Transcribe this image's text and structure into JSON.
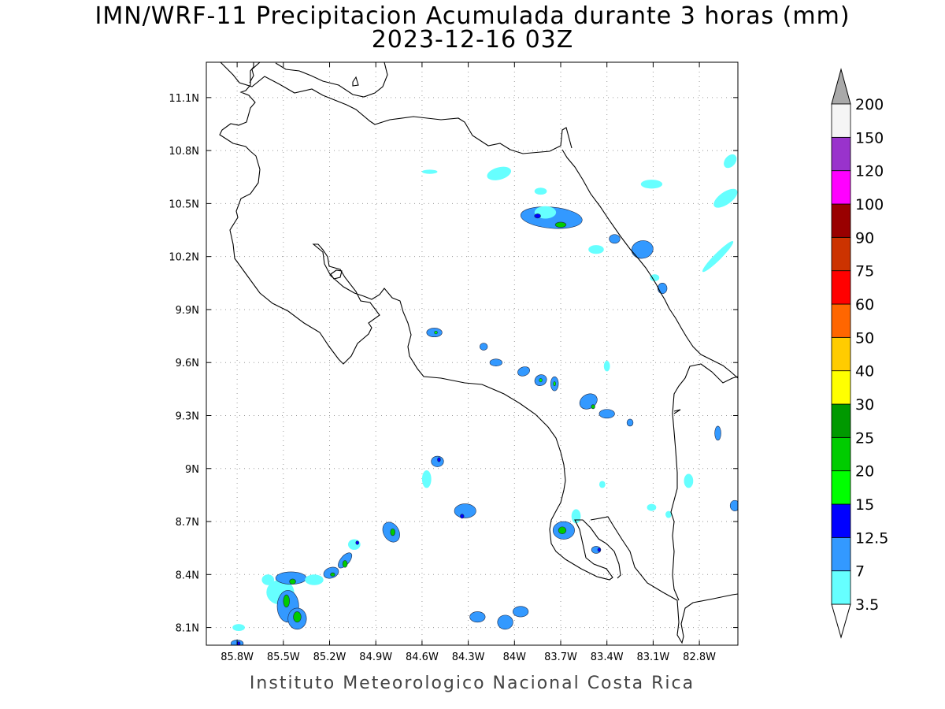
{
  "title": {
    "line1": "IMN/WRF-11 Precipitacion Acumulada durante 3 horas (mm)",
    "line2": "2023-12-16 03Z"
  },
  "footer": "Instituto Meteorologico Nacional Costa Rica",
  "map": {
    "lon_range": [
      -86.0,
      -82.55
    ],
    "lat_range": [
      8.0,
      11.3
    ],
    "lon_ticks": [
      {
        "v": -85.8,
        "label": "85.8W"
      },
      {
        "v": -85.5,
        "label": "85.5W"
      },
      {
        "v": -85.2,
        "label": "85.2W"
      },
      {
        "v": -84.9,
        "label": "84.9W"
      },
      {
        "v": -84.6,
        "label": "84.6W"
      },
      {
        "v": -84.3,
        "label": "84.3W"
      },
      {
        "v": -84.0,
        "label": "84W"
      },
      {
        "v": -83.7,
        "label": "83.7W"
      },
      {
        "v": -83.4,
        "label": "83.4W"
      },
      {
        "v": -83.1,
        "label": "83.1W"
      },
      {
        "v": -82.8,
        "label": "82.8W"
      }
    ],
    "lat_ticks": [
      {
        "v": 8.1,
        "label": "8.1N"
      },
      {
        "v": 8.4,
        "label": "8.4N"
      },
      {
        "v": 8.7,
        "label": "8.7N"
      },
      {
        "v": 9.0,
        "label": "9N"
      },
      {
        "v": 9.3,
        "label": "9.3N"
      },
      {
        "v": 9.6,
        "label": "9.6N"
      },
      {
        "v": 9.9,
        "label": "9.9N"
      },
      {
        "v": 10.2,
        "label": "10.2N"
      },
      {
        "v": 10.5,
        "label": "10.5N"
      },
      {
        "v": 10.8,
        "label": "10.8N"
      },
      {
        "v": 11.1,
        "label": "11.1N"
      }
    ],
    "grid": true,
    "cells": [
      {
        "lon": -85.52,
        "lat": 8.3,
        "c": 0,
        "rx": 0.09,
        "ry": 0.07,
        "rot": 0
      },
      {
        "lon": -85.47,
        "lat": 8.22,
        "c": 1,
        "rx": 0.07,
        "ry": 0.09,
        "rot": 0
      },
      {
        "lon": -85.48,
        "lat": 8.25,
        "c": 4,
        "rx": 0.02,
        "ry": 0.035,
        "rot": 0
      },
      {
        "lon": -85.41,
        "lat": 8.15,
        "c": 1,
        "rx": 0.06,
        "ry": 0.06,
        "rot": 0
      },
      {
        "lon": -85.41,
        "lat": 8.16,
        "c": 4,
        "rx": 0.025,
        "ry": 0.03,
        "rot": 0
      },
      {
        "lon": -85.45,
        "lat": 8.38,
        "c": 1,
        "rx": 0.1,
        "ry": 0.035,
        "rot": 0
      },
      {
        "lon": -85.44,
        "lat": 8.36,
        "c": 4,
        "rx": 0.02,
        "ry": 0.015,
        "rot": 0
      },
      {
        "lon": -85.6,
        "lat": 8.37,
        "c": 0,
        "rx": 0.04,
        "ry": 0.03,
        "rot": 0
      },
      {
        "lon": -85.3,
        "lat": 8.37,
        "c": 0,
        "rx": 0.06,
        "ry": 0.03,
        "rot": 0
      },
      {
        "lon": -85.19,
        "lat": 8.41,
        "c": 1,
        "rx": 0.05,
        "ry": 0.03,
        "rot": -20
      },
      {
        "lon": -85.18,
        "lat": 8.4,
        "c": 4,
        "rx": 0.015,
        "ry": 0.01,
        "rot": 0
      },
      {
        "lon": -85.1,
        "lat": 8.48,
        "c": 1,
        "rx": 0.06,
        "ry": 0.025,
        "rot": -50
      },
      {
        "lon": -85.1,
        "lat": 8.46,
        "c": 4,
        "rx": 0.015,
        "ry": 0.02,
        "rot": 0
      },
      {
        "lon": -85.04,
        "lat": 8.57,
        "c": 0,
        "rx": 0.04,
        "ry": 0.03,
        "rot": 0
      },
      {
        "lon": -85.02,
        "lat": 8.58,
        "c": 2,
        "rx": 0.01,
        "ry": 0.01,
        "rot": 0
      },
      {
        "lon": -84.8,
        "lat": 8.64,
        "c": 1,
        "rx": 0.05,
        "ry": 0.06,
        "rot": -30
      },
      {
        "lon": -84.79,
        "lat": 8.64,
        "c": 4,
        "rx": 0.015,
        "ry": 0.02,
        "rot": 0
      },
      {
        "lon": -84.5,
        "lat": 9.04,
        "c": 1,
        "rx": 0.04,
        "ry": 0.03,
        "rot": 0
      },
      {
        "lon": -84.49,
        "lat": 9.05,
        "c": 2,
        "rx": 0.01,
        "ry": 0.012,
        "rot": 0
      },
      {
        "lon": -84.57,
        "lat": 8.94,
        "c": 0,
        "rx": 0.03,
        "ry": 0.05,
        "rot": 0
      },
      {
        "lon": -84.32,
        "lat": 8.76,
        "c": 1,
        "rx": 0.07,
        "ry": 0.04,
        "rot": 0
      },
      {
        "lon": -84.34,
        "lat": 8.73,
        "c": 2,
        "rx": 0.012,
        "ry": 0.012,
        "rot": 0
      },
      {
        "lon": -84.24,
        "lat": 8.16,
        "c": 1,
        "rx": 0.05,
        "ry": 0.03,
        "rot": 0
      },
      {
        "lon": -84.06,
        "lat": 8.13,
        "c": 1,
        "rx": 0.05,
        "ry": 0.04,
        "rot": 0
      },
      {
        "lon": -83.96,
        "lat": 8.19,
        "c": 1,
        "rx": 0.05,
        "ry": 0.03,
        "rot": 0
      },
      {
        "lon": -85.79,
        "lat": 8.1,
        "c": 0,
        "rx": 0.04,
        "ry": 0.02,
        "rot": 0
      },
      {
        "lon": -85.8,
        "lat": 8.01,
        "c": 1,
        "rx": 0.04,
        "ry": 0.02,
        "rot": 0
      },
      {
        "lon": -85.79,
        "lat": 8.01,
        "c": 2,
        "rx": 0.01,
        "ry": 0.01,
        "rot": 0
      },
      {
        "lon": -83.68,
        "lat": 8.65,
        "c": 1,
        "rx": 0.07,
        "ry": 0.05,
        "rot": 0
      },
      {
        "lon": -83.69,
        "lat": 8.65,
        "c": 4,
        "rx": 0.025,
        "ry": 0.02,
        "rot": 0
      },
      {
        "lon": -83.6,
        "lat": 8.73,
        "c": 0,
        "rx": 0.03,
        "ry": 0.04,
        "rot": 0
      },
      {
        "lon": -83.47,
        "lat": 8.54,
        "c": 1,
        "rx": 0.03,
        "ry": 0.02,
        "rot": 0
      },
      {
        "lon": -83.45,
        "lat": 8.54,
        "c": 2,
        "rx": 0.01,
        "ry": 0.01,
        "rot": 0
      },
      {
        "lon": -83.43,
        "lat": 8.91,
        "c": 0,
        "rx": 0.02,
        "ry": 0.02,
        "rot": 0
      },
      {
        "lon": -83.11,
        "lat": 8.78,
        "c": 0,
        "rx": 0.03,
        "ry": 0.02,
        "rot": 0
      },
      {
        "lon": -83.0,
        "lat": 8.74,
        "c": 0,
        "rx": 0.02,
        "ry": 0.02,
        "rot": 0
      },
      {
        "lon": -82.87,
        "lat": 8.93,
        "c": 0,
        "rx": 0.03,
        "ry": 0.04,
        "rot": 0
      },
      {
        "lon": -82.68,
        "lat": 9.2,
        "c": 1,
        "rx": 0.02,
        "ry": 0.04,
        "rot": 0
      },
      {
        "lon": -82.57,
        "lat": 8.79,
        "c": 1,
        "rx": 0.03,
        "ry": 0.03,
        "rot": 0
      },
      {
        "lon": -84.52,
        "lat": 9.77,
        "c": 1,
        "rx": 0.05,
        "ry": 0.025,
        "rot": 0
      },
      {
        "lon": -84.51,
        "lat": 9.77,
        "c": 3,
        "rx": 0.01,
        "ry": 0.008,
        "rot": 0
      },
      {
        "lon": -84.2,
        "lat": 9.69,
        "c": 1,
        "rx": 0.025,
        "ry": 0.02,
        "rot": 0
      },
      {
        "lon": -84.12,
        "lat": 9.6,
        "c": 1,
        "rx": 0.04,
        "ry": 0.02,
        "rot": 0
      },
      {
        "lon": -83.94,
        "lat": 9.55,
        "c": 1,
        "rx": 0.04,
        "ry": 0.025,
        "rot": -20
      },
      {
        "lon": -83.83,
        "lat": 9.5,
        "c": 1,
        "rx": 0.04,
        "ry": 0.03,
        "rot": -30
      },
      {
        "lon": -83.83,
        "lat": 9.5,
        "c": 3,
        "rx": 0.01,
        "ry": 0.01,
        "rot": 0
      },
      {
        "lon": -83.74,
        "lat": 9.48,
        "c": 1,
        "rx": 0.025,
        "ry": 0.04,
        "rot": 0
      },
      {
        "lon": -83.74,
        "lat": 9.48,
        "c": 3,
        "rx": 0.008,
        "ry": 0.012,
        "rot": 0
      },
      {
        "lon": -83.52,
        "lat": 9.38,
        "c": 1,
        "rx": 0.06,
        "ry": 0.04,
        "rot": -30
      },
      {
        "lon": -83.49,
        "lat": 9.35,
        "c": 4,
        "rx": 0.012,
        "ry": 0.012,
        "rot": 0
      },
      {
        "lon": -83.4,
        "lat": 9.31,
        "c": 1,
        "rx": 0.05,
        "ry": 0.025,
        "rot": 0
      },
      {
        "lon": -83.25,
        "lat": 9.26,
        "c": 1,
        "rx": 0.02,
        "ry": 0.02,
        "rot": 0
      },
      {
        "lon": -83.4,
        "lat": 9.58,
        "c": 0,
        "rx": 0.02,
        "ry": 0.03,
        "rot": 0
      },
      {
        "lon": -83.76,
        "lat": 10.42,
        "c": 1,
        "rx": 0.2,
        "ry": 0.06,
        "rot": 5
      },
      {
        "lon": -83.8,
        "lat": 10.45,
        "c": 0,
        "rx": 0.07,
        "ry": 0.035,
        "rot": 0
      },
      {
        "lon": -83.7,
        "lat": 10.38,
        "c": 4,
        "rx": 0.035,
        "ry": 0.015,
        "rot": 0
      },
      {
        "lon": -83.85,
        "lat": 10.43,
        "c": 2,
        "rx": 0.02,
        "ry": 0.012,
        "rot": 0
      },
      {
        "lon": -83.35,
        "lat": 10.3,
        "c": 1,
        "rx": 0.035,
        "ry": 0.025,
        "rot": 0
      },
      {
        "lon": -83.17,
        "lat": 10.24,
        "c": 1,
        "rx": 0.07,
        "ry": 0.05,
        "rot": -10
      },
      {
        "lon": -83.04,
        "lat": 10.02,
        "c": 1,
        "rx": 0.03,
        "ry": 0.03,
        "rot": 0
      },
      {
        "lon": -83.09,
        "lat": 10.08,
        "c": 0,
        "rx": 0.03,
        "ry": 0.02,
        "rot": 0
      },
      {
        "lon": -84.1,
        "lat": 10.67,
        "c": 0,
        "rx": 0.08,
        "ry": 0.035,
        "rot": -15
      },
      {
        "lon": -84.55,
        "lat": 10.68,
        "c": 0,
        "rx": 0.05,
        "ry": 0.012,
        "rot": 0
      },
      {
        "lon": -83.11,
        "lat": 10.61,
        "c": 0,
        "rx": 0.07,
        "ry": 0.025,
        "rot": 0
      },
      {
        "lon": -82.63,
        "lat": 10.53,
        "c": 0,
        "rx": 0.09,
        "ry": 0.035,
        "rot": -35
      },
      {
        "lon": -82.6,
        "lat": 10.74,
        "c": 0,
        "rx": 0.05,
        "ry": 0.03,
        "rot": -50
      },
      {
        "lon": -82.68,
        "lat": 10.2,
        "c": 0,
        "rx": 0.14,
        "ry": 0.02,
        "rot": -45
      },
      {
        "lon": -83.47,
        "lat": 10.24,
        "c": 0,
        "rx": 0.05,
        "ry": 0.025,
        "rot": 0
      },
      {
        "lon": -83.83,
        "lat": 10.57,
        "c": 0,
        "rx": 0.04,
        "ry": 0.02,
        "rot": 0
      }
    ]
  },
  "colorbar": {
    "levels": [
      "3.5",
      "7",
      "12.5",
      "15",
      "20",
      "25",
      "30",
      "40",
      "50",
      "60",
      "75",
      "90",
      "100",
      "120",
      "150",
      "200"
    ],
    "colors": [
      "#66ffff",
      "#3399ff",
      "#0000ff",
      "#00ff00",
      "#00cc00",
      "#009900",
      "#ffff00",
      "#ffcc00",
      "#ff6600",
      "#ff0000",
      "#cc3300",
      "#990000",
      "#ff00ff",
      "#9933cc",
      "#f5f5f5"
    ],
    "over_color": "#a9a9a9",
    "under_color": "#ffffff"
  }
}
